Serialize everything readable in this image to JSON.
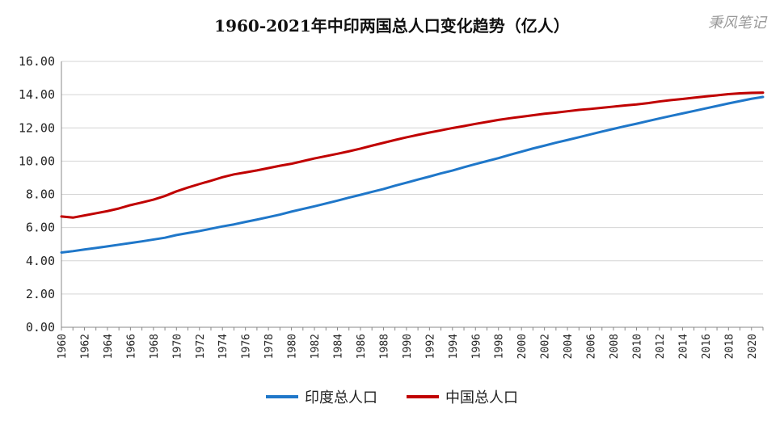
{
  "colors": {
    "india": "#1f77c9",
    "china": "#c00000",
    "grid": "#d4d4d4",
    "axis": "#888888"
  },
  "watermark": "秉风笔记",
  "chart_data": {
    "type": "line",
    "title": "1960-2021年中印两国总人口变化趋势（亿人）",
    "xlabel": "",
    "ylabel": "",
    "ylim": [
      0,
      16
    ],
    "yticks": [
      "0.00",
      "2.00",
      "4.00",
      "6.00",
      "8.00",
      "10.00",
      "12.00",
      "14.00",
      "16.00"
    ],
    "xticks": [
      "1960",
      "1962",
      "1964",
      "1966",
      "1968",
      "1970",
      "1972",
      "1974",
      "1976",
      "1978",
      "1980",
      "1982",
      "1984",
      "1986",
      "1988",
      "1990",
      "1992",
      "1994",
      "1996",
      "1998",
      "2000",
      "2002",
      "2004",
      "2006",
      "2008",
      "2010",
      "2012",
      "2014",
      "2016",
      "2018",
      "2020"
    ],
    "x": [
      1960,
      1961,
      1962,
      1963,
      1964,
      1965,
      1966,
      1967,
      1968,
      1969,
      1970,
      1971,
      1972,
      1973,
      1974,
      1975,
      1976,
      1977,
      1978,
      1979,
      1980,
      1981,
      1982,
      1983,
      1984,
      1985,
      1986,
      1987,
      1988,
      1989,
      1990,
      1991,
      1992,
      1993,
      1994,
      1995,
      1996,
      1997,
      1998,
      1999,
      2000,
      2001,
      2002,
      2003,
      2004,
      2005,
      2006,
      2007,
      2008,
      2009,
      2010,
      2011,
      2012,
      2013,
      2014,
      2015,
      2016,
      2017,
      2018,
      2019,
      2020,
      2021
    ],
    "series": [
      {
        "name": "印度总人口",
        "color_key": "india",
        "values": [
          4.5,
          4.58,
          4.68,
          4.77,
          4.87,
          4.97,
          5.07,
          5.17,
          5.28,
          5.39,
          5.55,
          5.67,
          5.79,
          5.93,
          6.07,
          6.19,
          6.34,
          6.48,
          6.63,
          6.78,
          6.96,
          7.12,
          7.28,
          7.45,
          7.62,
          7.8,
          7.97,
          8.15,
          8.32,
          8.52,
          8.7,
          8.89,
          9.07,
          9.26,
          9.43,
          9.63,
          9.82,
          10.0,
          10.18,
          10.38,
          10.57,
          10.76,
          10.93,
          11.11,
          11.27,
          11.44,
          11.61,
          11.78,
          11.94,
          12.1,
          12.25,
          12.41,
          12.57,
          12.72,
          12.87,
          13.02,
          13.17,
          13.32,
          13.47,
          13.61,
          13.75,
          13.86
        ]
      },
      {
        "name": "中国总人口",
        "color_key": "china",
        "values": [
          6.67,
          6.6,
          6.73,
          6.86,
          6.99,
          7.15,
          7.35,
          7.51,
          7.68,
          7.9,
          8.18,
          8.41,
          8.62,
          8.82,
          9.03,
          9.2,
          9.32,
          9.44,
          9.58,
          9.72,
          9.84,
          10.0,
          10.16,
          10.3,
          10.44,
          10.59,
          10.75,
          10.93,
          11.1,
          11.27,
          11.43,
          11.58,
          11.72,
          11.85,
          11.99,
          12.11,
          12.24,
          12.36,
          12.48,
          12.58,
          12.67,
          12.76,
          12.85,
          12.92,
          13.0,
          13.08,
          13.14,
          13.21,
          13.28,
          13.35,
          13.41,
          13.49,
          13.59,
          13.67,
          13.74,
          13.82,
          13.89,
          13.96,
          14.03,
          14.08,
          14.11,
          14.12
        ]
      }
    ],
    "legend": [
      "印度总人口",
      "中国总人口"
    ],
    "legend_position": "bottom-center",
    "grid": true
  }
}
